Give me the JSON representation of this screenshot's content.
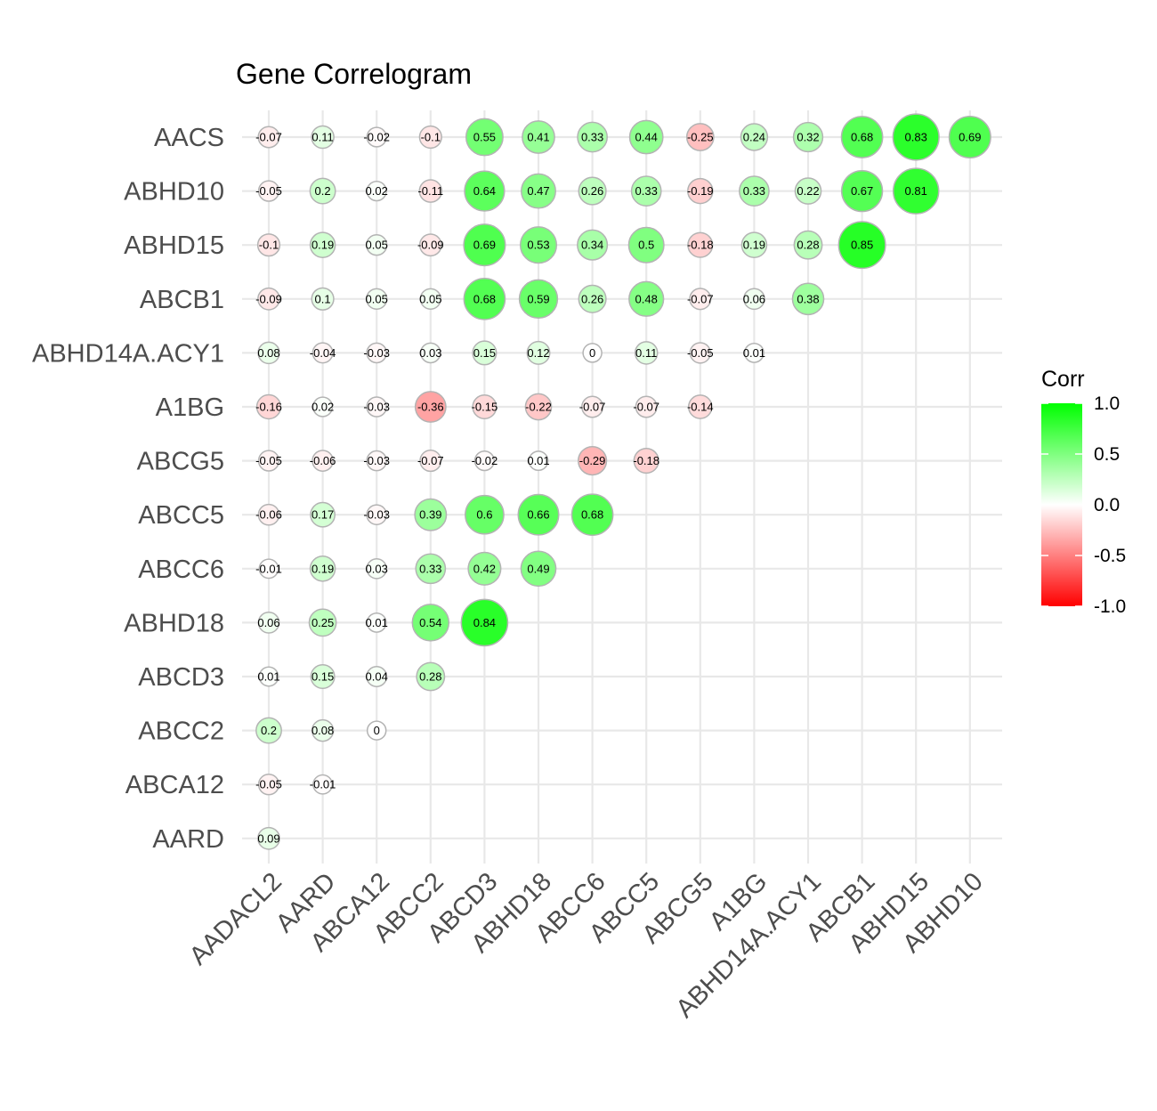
{
  "chart_data": {
    "type": "heatmap",
    "title": "Gene Correlogram",
    "x_categories": [
      "AADACL2",
      "AARD",
      "ABCA12",
      "ABCC2",
      "ABCD3",
      "ABHD18",
      "ABCC6",
      "ABCC5",
      "ABCG5",
      "A1BG",
      "ABHD14A.ACY1",
      "ABCB1",
      "ABHD15",
      "ABHD10"
    ],
    "y_categories": [
      "AACS",
      "ABHD10",
      "ABHD15",
      "ABCB1",
      "ABHD14A.ACY1",
      "A1BG",
      "ABCG5",
      "ABCC5",
      "ABCC6",
      "ABHD18",
      "ABCD3",
      "ABCC2",
      "ABCA12",
      "AARD"
    ],
    "values": [
      [
        -0.07,
        0.11,
        -0.02,
        -0.1,
        0.55,
        0.41,
        0.33,
        0.44,
        -0.25,
        0.24,
        0.32,
        0.68,
        0.83,
        0.69
      ],
      [
        -0.05,
        0.2,
        0.02,
        -0.11,
        0.64,
        0.47,
        0.26,
        0.33,
        -0.19,
        0.33,
        0.22,
        0.67,
        0.81
      ],
      [
        -0.1,
        0.19,
        0.05,
        -0.09,
        0.69,
        0.53,
        0.34,
        0.5,
        -0.18,
        0.19,
        0.28,
        0.85
      ],
      [
        -0.09,
        0.1,
        0.05,
        0.05,
        0.68,
        0.59,
        0.26,
        0.48,
        -0.07,
        0.06,
        0.38
      ],
      [
        0.08,
        -0.04,
        -0.03,
        0.03,
        0.15,
        0.12,
        0,
        0.11,
        -0.05,
        0.01
      ],
      [
        -0.16,
        0.02,
        -0.03,
        -0.36,
        -0.15,
        -0.22,
        -0.07,
        -0.07,
        -0.14
      ],
      [
        -0.05,
        -0.06,
        -0.03,
        -0.07,
        -0.02,
        0.01,
        -0.29,
        -0.18
      ],
      [
        -0.06,
        0.17,
        -0.03,
        0.39,
        0.6,
        0.66,
        0.68
      ],
      [
        -0.01,
        0.19,
        0.03,
        0.33,
        0.42,
        0.49
      ],
      [
        0.06,
        0.25,
        0.01,
        0.54,
        0.84
      ],
      [
        0.01,
        0.15,
        0.04,
        0.28
      ],
      [
        0.2,
        0.08,
        0
      ],
      [
        -0.05,
        -0.01
      ],
      [
        0.09
      ]
    ],
    "legend": {
      "title": "Corr",
      "ticks": [
        "1.0",
        "0.5",
        "0.0",
        "-0.5",
        "-1.0"
      ],
      "tick_values": [
        1,
        0.5,
        0,
        -0.5,
        -1
      ],
      "placement": "right"
    },
    "colors": {
      "low": "#FF0000",
      "mid": "#FFFFFF",
      "high": "#00FF00",
      "circle_outline": "#b3b3b3",
      "grid": "#e8e8e8"
    },
    "value_range": [
      -1,
      1
    ],
    "grid": true
  }
}
